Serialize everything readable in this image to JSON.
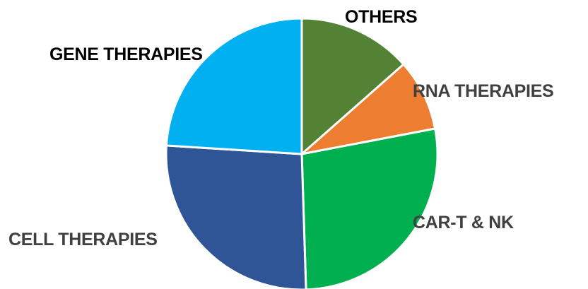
{
  "chart_data": {
    "type": "pie",
    "start_angle_deg": 0,
    "direction": "clockwise",
    "slices": [
      {
        "label": "OTHERS",
        "value": 13.5,
        "color": "#548235",
        "label_color": "#000000"
      },
      {
        "label": "RNA THERAPIES",
        "value": 8.5,
        "color": "#ED7D31",
        "label_color": "#404040"
      },
      {
        "label": "CAR-T & NK",
        "value": 27.5,
        "color": "#00B050",
        "label_color": "#404040"
      },
      {
        "label": "CELL THERAPIES",
        "value": 26.5,
        "color": "#2F5597",
        "label_color": "#404040"
      },
      {
        "label": "GENE THERAPIES",
        "value": 24.0,
        "color": "#00B0F0",
        "label_color": "#000000"
      }
    ]
  }
}
